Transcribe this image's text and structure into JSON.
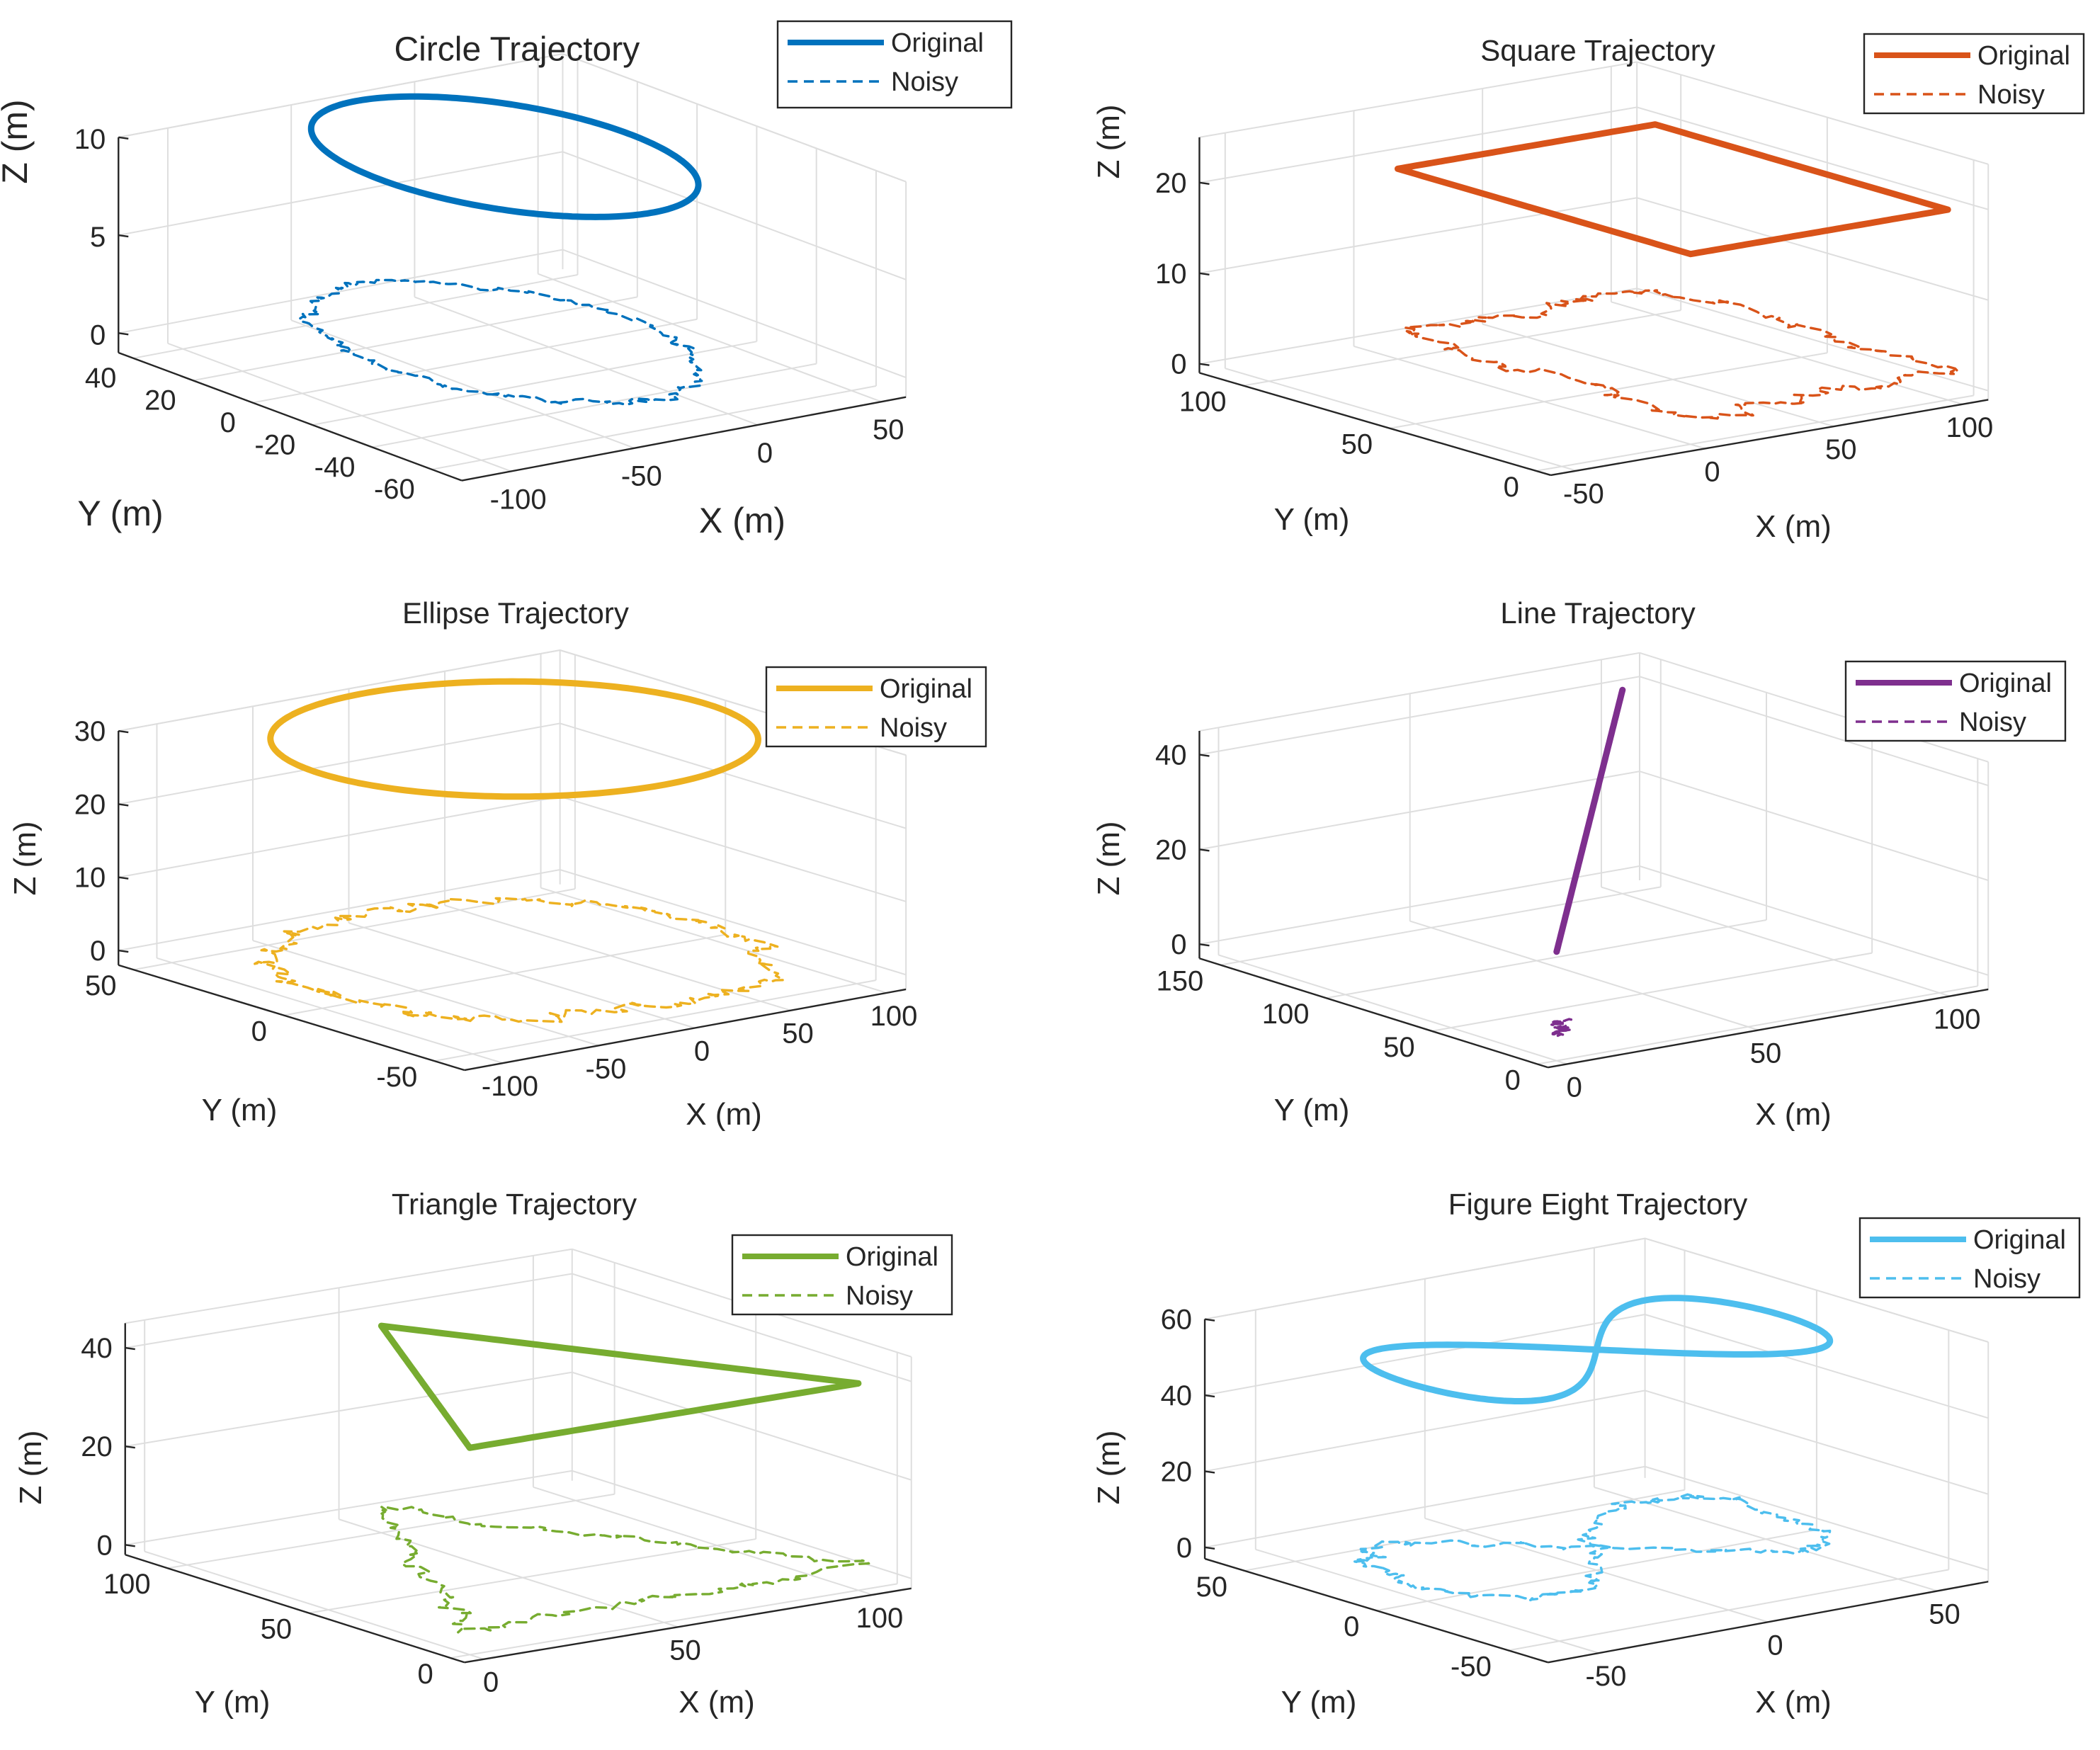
{
  "chart_data": [
    {
      "type": "line3d",
      "title": "Circle Trajectory",
      "xlabel": "X (m)",
      "ylabel": "Y (m)",
      "zlabel": "Z (m)",
      "x_ticks": [
        "-100",
        "-50",
        "0",
        "50"
      ],
      "y_ticks": [
        "-60",
        "-40",
        "-20",
        "0",
        "20",
        "40"
      ],
      "z_ticks": [
        "0",
        "5",
        "10"
      ],
      "xlim": [
        -120,
        60
      ],
      "ylim": [
        -70,
        45
      ],
      "zlim": [
        -1,
        10
      ],
      "legend": [
        "Original",
        "Noisy"
      ],
      "legend_position": "top-right",
      "color": "#0072BD",
      "series": [
        {
          "name": "Original",
          "style": "solid",
          "shape": "circle",
          "center": [
            -30,
            -10,
            10
          ],
          "radius": 50
        },
        {
          "name": "Noisy",
          "style": "dashed",
          "shape": "circle",
          "center": [
            -30,
            -10,
            0.5
          ],
          "radius": 50,
          "noise": 2.5
        }
      ]
    },
    {
      "type": "line3d",
      "title": "Square Trajectory",
      "xlabel": "X (m)",
      "ylabel": "Y (m)",
      "zlabel": "Z (m)",
      "x_ticks": [
        "-50",
        "0",
        "50",
        "100"
      ],
      "y_ticks": [
        "0",
        "50",
        "100"
      ],
      "z_ticks": [
        "0",
        "10",
        "20"
      ],
      "xlim": [
        -60,
        110
      ],
      "ylim": [
        -5,
        115
      ],
      "zlim": [
        -1,
        25
      ],
      "legend": [
        "Original",
        "Noisy"
      ],
      "legend_position": "top-right",
      "color": "#D95319",
      "series": [
        {
          "name": "Original",
          "style": "solid",
          "shape": "polygon",
          "points": [
            [
              0,
              0,
              20
            ],
            [
              100,
              0,
              20
            ],
            [
              100,
              100,
              20
            ],
            [
              0,
              100,
              20
            ],
            [
              0,
              0,
              20
            ]
          ]
        },
        {
          "name": "Noisy",
          "style": "dashed",
          "shape": "polygon",
          "points": [
            [
              0,
              0,
              2
            ],
            [
              100,
              0,
              2
            ],
            [
              100,
              100,
              2
            ],
            [
              0,
              100,
              2
            ],
            [
              0,
              0,
              2
            ]
          ],
          "noise": 4
        }
      ]
    },
    {
      "type": "line3d",
      "title": "Ellipse Trajectory",
      "xlabel": "X (m)",
      "ylabel": "Y (m)",
      "zlabel": "Z (m)",
      "x_ticks": [
        "-100",
        "-50",
        "0",
        "50",
        "100"
      ],
      "y_ticks": [
        "-50",
        "0",
        "50"
      ],
      "z_ticks": [
        "0",
        "10",
        "20",
        "30"
      ],
      "xlim": [
        -120,
        110
      ],
      "ylim": [
        -60,
        55
      ],
      "zlim": [
        -2,
        30
      ],
      "legend": [
        "Original",
        "Noisy"
      ],
      "legend_position": "top-right",
      "color": "#EDB120",
      "series": [
        {
          "name": "Original",
          "style": "solid",
          "shape": "ellipse",
          "center": [
            0,
            0,
            30
          ],
          "rx": 100,
          "ry": 50
        },
        {
          "name": "Noisy",
          "style": "dashed",
          "shape": "ellipse",
          "center": [
            0,
            0,
            0
          ],
          "rx": 100,
          "ry": 50,
          "noise": 5
        }
      ]
    },
    {
      "type": "line3d",
      "title": "Line Trajectory",
      "xlabel": "X (m)",
      "ylabel": "Y (m)",
      "zlabel": "Z (m)",
      "x_ticks": [
        "0",
        "50",
        "100"
      ],
      "y_ticks": [
        "0",
        "50",
        "100",
        "150"
      ],
      "z_ticks": [
        "0",
        "20",
        "40"
      ],
      "xlim": [
        -5,
        110
      ],
      "ylim": [
        -5,
        160
      ],
      "zlim": [
        -3,
        45
      ],
      "legend": [
        "Original",
        "Noisy"
      ],
      "legend_position": "top-right",
      "color": "#7E2F8E",
      "series": [
        {
          "name": "Original",
          "style": "solid",
          "shape": "polyline",
          "points": [
            [
              0,
              0,
              20
            ],
            [
              100,
              150,
              40
            ]
          ]
        },
        {
          "name": "Noisy",
          "style": "dashed",
          "shape": "polyline",
          "points": [
            [
              0,
              0,
              2
            ],
            [
              8,
              12,
              3
            ]
          ],
          "noise": 2
        }
      ]
    },
    {
      "type": "line3d",
      "title": "Triangle Trajectory",
      "xlabel": "X (m)",
      "ylabel": "Y (m)",
      "zlabel": "Z (m)",
      "x_ticks": [
        "0",
        "50",
        "100"
      ],
      "y_ticks": [
        "0",
        "50",
        "100"
      ],
      "z_ticks": [
        "0",
        "20",
        "40"
      ],
      "xlim": [
        -5,
        110
      ],
      "ylim": [
        -5,
        115
      ],
      "zlim": [
        -2,
        45
      ],
      "legend": [
        "Original",
        "Noisy"
      ],
      "legend_position": "top-right",
      "color": "#77AC30",
      "series": [
        {
          "name": "Original",
          "style": "solid",
          "shape": "polygon",
          "points": [
            [
              0,
              0,
              40
            ],
            [
              100,
              0,
              40
            ],
            [
              50,
              100,
              40
            ],
            [
              0,
              0,
              40
            ]
          ]
        },
        {
          "name": "Noisy",
          "style": "dashed",
          "shape": "polygon",
          "points": [
            [
              0,
              0,
              3
            ],
            [
              100,
              0,
              3
            ],
            [
              50,
              100,
              3
            ],
            [
              0,
              0,
              3
            ]
          ],
          "noise": 3
        }
      ]
    },
    {
      "type": "line3d",
      "title": "Figure Eight Trajectory",
      "xlabel": "X (m)",
      "ylabel": "Y (m)",
      "zlabel": "Z (m)",
      "x_ticks": [
        "-50",
        "0",
        "50"
      ],
      "y_ticks": [
        "-50",
        "0",
        "50"
      ],
      "z_ticks": [
        "0",
        "20",
        "40",
        "60"
      ],
      "xlim": [
        -65,
        65
      ],
      "ylim": [
        -65,
        65
      ],
      "zlim": [
        -3,
        60
      ],
      "legend": [
        "Original",
        "Noisy"
      ],
      "legend_position": "top-right",
      "color": "#4DBEEE",
      "series": [
        {
          "name": "Original",
          "style": "solid",
          "shape": "figure8",
          "center": [
            0,
            0,
            55
          ],
          "a": 55,
          "b": 45
        },
        {
          "name": "Noisy",
          "style": "dashed",
          "shape": "figure8",
          "center": [
            0,
            0,
            3
          ],
          "a": 55,
          "b": 45,
          "noise": 3
        }
      ]
    }
  ]
}
